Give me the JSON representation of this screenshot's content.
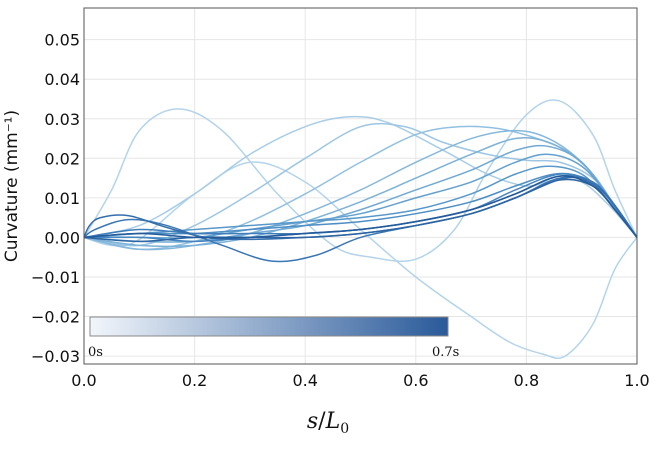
{
  "chart_data": {
    "type": "line",
    "title": "",
    "xlabel": "s/L0",
    "xlabel_parts": {
      "var": "s",
      "sep": "/",
      "base": "L",
      "sub": "0"
    },
    "ylabel": "Curvature (mm⁻¹)",
    "xlim": [
      0.0,
      1.0
    ],
    "ylim": [
      -0.032,
      0.058
    ],
    "xticks": [
      0.0,
      0.2,
      0.4,
      0.6,
      0.8,
      1.0
    ],
    "xtick_labels": [
      "0.0",
      "0.2",
      "0.4",
      "0.6",
      "0.8",
      "1.0"
    ],
    "yticks": [
      -0.03,
      -0.02,
      -0.01,
      0.0,
      0.01,
      0.02,
      0.03,
      0.04,
      0.05
    ],
    "ytick_labels": [
      "−0.03",
      "−0.02",
      "−0.01",
      "0.00",
      "0.01",
      "0.02",
      "0.03",
      "0.04",
      "0.05"
    ],
    "grid": true,
    "colorbar": {
      "label_start": "0s",
      "label_end": "0.7s",
      "color_start": "#f2f6fb",
      "color_end": "#2a5a9a"
    },
    "series": [
      {
        "color": "#b4d4ea",
        "x": [
          0,
          0.05,
          0.1,
          0.17,
          0.25,
          0.35,
          0.45,
          0.52,
          0.6,
          0.67,
          0.73,
          0.8,
          0.86,
          0.92,
          0.96,
          1.0
        ],
        "y": [
          0.0,
          0.012,
          0.027,
          0.0325,
          0.027,
          0.011,
          -0.002,
          -0.005,
          -0.0055,
          0.002,
          0.017,
          0.031,
          0.0345,
          0.026,
          0.012,
          0.0
        ]
      },
      {
        "color": "#b4d4ea",
        "x": [
          0,
          0.05,
          0.1,
          0.2,
          0.3,
          0.4,
          0.5,
          0.6,
          0.7,
          0.77,
          0.83,
          0.87,
          0.92,
          0.96,
          1.0
        ],
        "y": [
          0.0,
          -0.002,
          -0.0005,
          0.011,
          0.019,
          0.014,
          0.002,
          -0.01,
          -0.02,
          -0.0265,
          -0.0295,
          -0.03,
          -0.022,
          -0.008,
          0.0
        ]
      },
      {
        "color": "#a8cde6",
        "x": [
          0,
          0.1,
          0.2,
          0.3,
          0.4,
          0.48,
          0.55,
          0.65,
          0.73,
          0.8,
          0.85,
          0.9,
          0.95,
          1.0
        ],
        "y": [
          0.0,
          0.003,
          0.011,
          0.021,
          0.028,
          0.0305,
          0.029,
          0.022,
          0.016,
          0.013,
          0.0145,
          0.014,
          0.008,
          0.0
        ]
      },
      {
        "color": "#9cc6e3",
        "x": [
          0,
          0.1,
          0.2,
          0.3,
          0.4,
          0.5,
          0.58,
          0.65,
          0.73,
          0.8,
          0.86,
          0.92,
          0.96,
          1.0
        ],
        "y": [
          0.0,
          -0.002,
          0.003,
          0.011,
          0.02,
          0.028,
          0.028,
          0.024,
          0.021,
          0.0195,
          0.019,
          0.015,
          0.008,
          0.0
        ]
      },
      {
        "color": "#92c0e0",
        "x": [
          0,
          0.1,
          0.2,
          0.3,
          0.4,
          0.5,
          0.6,
          0.68,
          0.75,
          0.82,
          0.87,
          0.92,
          0.96,
          1.0
        ],
        "y": [
          0.0,
          -0.003,
          -0.001,
          0.004,
          0.011,
          0.019,
          0.026,
          0.028,
          0.0275,
          0.025,
          0.022,
          0.016,
          0.008,
          0.0
        ]
      },
      {
        "color": "#86b8dc",
        "x": [
          0,
          0.1,
          0.2,
          0.3,
          0.4,
          0.5,
          0.6,
          0.7,
          0.78,
          0.84,
          0.9,
          0.95,
          1.0
        ],
        "y": [
          0.0,
          -0.003,
          -0.002,
          0.001,
          0.006,
          0.012,
          0.019,
          0.025,
          0.027,
          0.025,
          0.019,
          0.01,
          0.0
        ]
      },
      {
        "color": "#7cb1d8",
        "x": [
          0,
          0.1,
          0.2,
          0.3,
          0.4,
          0.5,
          0.6,
          0.7,
          0.78,
          0.84,
          0.9,
          0.95,
          1.0
        ],
        "y": [
          0.0,
          -0.002,
          -0.002,
          0.0,
          0.004,
          0.009,
          0.015,
          0.021,
          0.025,
          0.024,
          0.019,
          0.01,
          0.0
        ]
      },
      {
        "color": "#70a9d3",
        "x": [
          0,
          0.1,
          0.2,
          0.3,
          0.4,
          0.5,
          0.6,
          0.7,
          0.78,
          0.84,
          0.9,
          0.95,
          1.0
        ],
        "y": [
          0.0,
          -0.001,
          -0.001,
          0.001,
          0.003,
          0.007,
          0.012,
          0.017,
          0.022,
          0.023,
          0.019,
          0.01,
          0.0
        ]
      },
      {
        "color": "#64a1cf",
        "x": [
          0,
          0.1,
          0.2,
          0.3,
          0.4,
          0.5,
          0.6,
          0.7,
          0.78,
          0.84,
          0.9,
          0.95,
          1.0
        ],
        "y": [
          0.0,
          0.0,
          0.0,
          0.002,
          0.004,
          0.006,
          0.01,
          0.014,
          0.019,
          0.021,
          0.018,
          0.01,
          0.0
        ]
      },
      {
        "color": "#5898ca",
        "x": [
          0,
          0.1,
          0.2,
          0.3,
          0.4,
          0.5,
          0.6,
          0.7,
          0.78,
          0.84,
          0.9,
          0.95,
          1.0
        ],
        "y": [
          0.0,
          0.001,
          0.002,
          0.003,
          0.004,
          0.005,
          0.007,
          0.011,
          0.016,
          0.018,
          0.016,
          0.009,
          0.0
        ]
      },
      {
        "color": "#4d8ec4",
        "x": [
          0,
          0.1,
          0.2,
          0.3,
          0.4,
          0.5,
          0.6,
          0.7,
          0.78,
          0.85,
          0.9,
          0.95,
          1.0
        ],
        "y": [
          0.0,
          0.001,
          0.001,
          0.002,
          0.003,
          0.004,
          0.006,
          0.009,
          0.013,
          0.016,
          0.015,
          0.009,
          0.0
        ]
      },
      {
        "color": "#4686c0",
        "x": [
          0,
          0.1,
          0.2,
          0.3,
          0.4,
          0.5,
          0.6,
          0.7,
          0.78,
          0.86,
          0.92,
          0.96,
          1.0
        ],
        "y": [
          0.0,
          0.0,
          -0.001,
          0.0,
          0.001,
          0.002,
          0.004,
          0.007,
          0.012,
          0.016,
          0.014,
          0.008,
          0.0
        ]
      },
      {
        "color": "#3f7eba",
        "x": [
          0,
          0.1,
          0.2,
          0.3,
          0.4,
          0.5,
          0.6,
          0.7,
          0.78,
          0.86,
          0.92,
          0.96,
          1.0
        ],
        "y": [
          0.0,
          0.002,
          0.001,
          0.001,
          0.001,
          0.002,
          0.004,
          0.007,
          0.011,
          0.0155,
          0.014,
          0.008,
          0.0
        ]
      },
      {
        "color": "#3a76b3",
        "x": [
          0,
          0.02,
          0.08,
          0.15,
          0.25,
          0.34,
          0.42,
          0.5,
          0.6,
          0.7,
          0.78,
          0.86,
          0.92,
          0.96,
          1.0
        ],
        "y": [
          0.0,
          0.002,
          0.0045,
          0.003,
          -0.002,
          -0.006,
          -0.0045,
          0.0,
          0.003,
          0.006,
          0.01,
          0.015,
          0.014,
          0.008,
          0.0
        ]
      },
      {
        "color": "#346eac",
        "x": [
          0,
          0.01,
          0.03,
          0.08,
          0.15,
          0.22,
          0.3,
          0.4,
          0.5,
          0.6,
          0.7,
          0.78,
          0.87,
          0.92,
          0.96,
          1.0
        ],
        "y": [
          0.0,
          0.003,
          0.005,
          0.0055,
          0.0025,
          0.0,
          -0.0005,
          0.0,
          0.001,
          0.003,
          0.006,
          0.01,
          0.015,
          0.0135,
          0.008,
          0.0
        ]
      },
      {
        "color": "#2d65a3",
        "x": [
          0,
          0.1,
          0.2,
          0.3,
          0.4,
          0.5,
          0.6,
          0.7,
          0.78,
          0.86,
          0.92,
          0.96,
          1.0
        ],
        "y": [
          0.0,
          -0.001,
          0.0,
          0.0,
          0.0,
          0.001,
          0.003,
          0.006,
          0.01,
          0.0145,
          0.013,
          0.007,
          0.0
        ]
      },
      {
        "color": "#245a9a",
        "x": [
          0,
          0.1,
          0.2,
          0.3,
          0.4,
          0.5,
          0.6,
          0.7,
          0.78,
          0.86,
          0.92,
          0.96,
          1.0
        ],
        "y": [
          0.0,
          0.001,
          0.0,
          0.0,
          0.001,
          0.002,
          0.004,
          0.007,
          0.011,
          0.0155,
          0.013,
          0.007,
          0.0
        ]
      }
    ]
  }
}
